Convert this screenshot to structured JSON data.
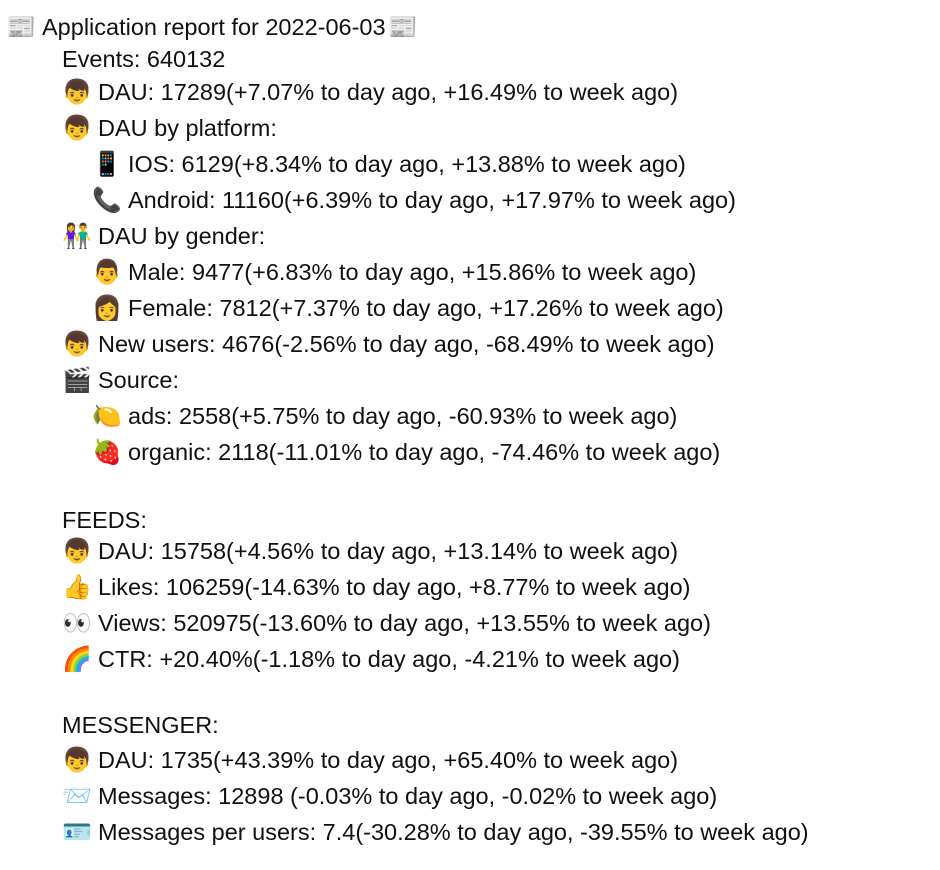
{
  "title": "Application report for 2022-06-03",
  "items": [
    "Events: 640132",
    "DAU: 17289(+7.07% to day ago, +16.49% to week ago)",
    "DAU by platform:",
    "IOS: 6129(+8.34% to day ago, +13.88% to week ago)",
    "Android: 11160(+6.39% to day ago, +17.97% to week ago)",
    "DAU by gender:",
    "Male: 9477(+6.83% to day ago, +15.86% to week ago)",
    "Female: 7812(+7.37% to day ago, +17.26% to week ago)",
    "New users: 4676(-2.56% to day ago, -68.49% to week ago)",
    "Source:",
    "ads: 2558(+5.75% to day ago, -60.93% to week ago)",
    "organic: 2118(-11.01% to day ago, -74.46% to week ago)",
    "FEEDS:",
    "DAU: 15758(+4.56% to day ago, +13.14% to week ago)",
    "Likes: 106259(-14.63% to day ago, +8.77% to week ago)",
    "Views: 520975(-13.60% to day ago, +13.55% to week ago)",
    "CTR: +20.40%(-1.18% to day ago, -4.21% to week ago)",
    "MESSENGER:",
    "DAU: 1735(+43.39% to day ago, +65.40% to week ago)",
    "Messages: 12898 (-0.03% to day ago, -0.02% to week ago)",
    "Messages per users: 7.4(-30.28% to day ago, -39.55% to week ago)"
  ]
}
